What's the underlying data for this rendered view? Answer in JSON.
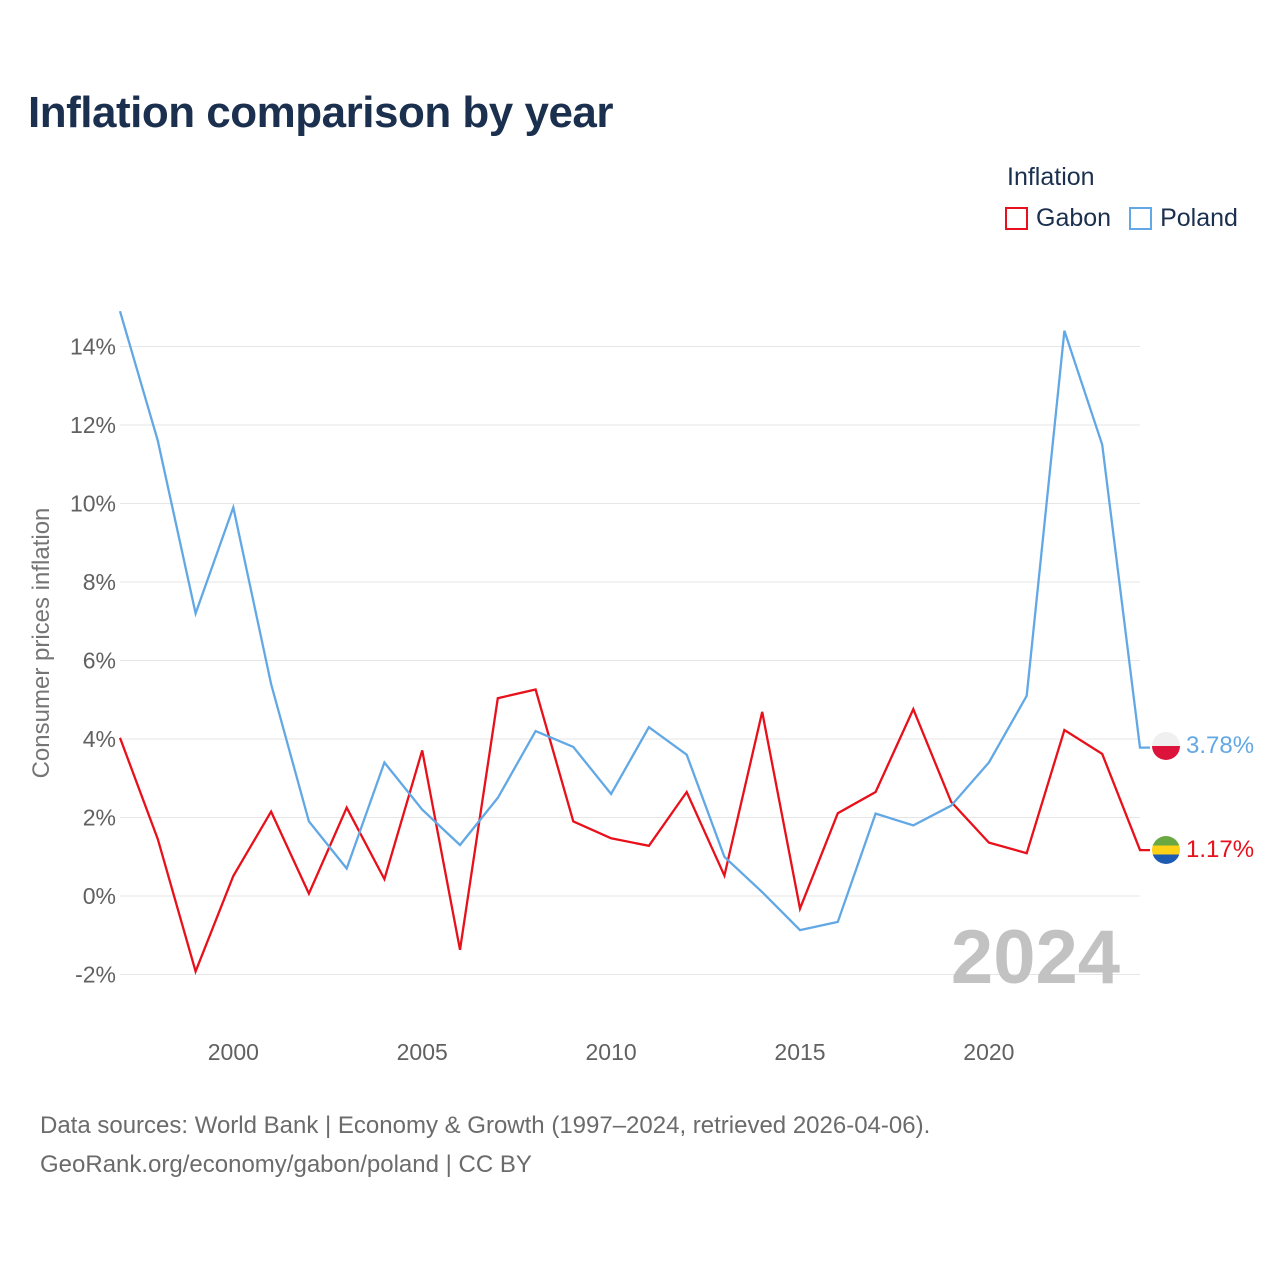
{
  "title": "Inflation comparison by year",
  "legend": {
    "title": "Inflation",
    "items": [
      {
        "label": "Gabon",
        "color": "#e8101a"
      },
      {
        "label": "Poland",
        "color": "#62a8e5"
      }
    ]
  },
  "chart_data": {
    "type": "line",
    "title": "Inflation comparison by year",
    "xlabel": "",
    "ylabel": "Consumer prices inflation",
    "xlim": [
      1997,
      2024
    ],
    "ylim": [
      -2.5,
      15
    ],
    "x": [
      1997,
      1998,
      1999,
      2000,
      2001,
      2002,
      2003,
      2004,
      2005,
      2006,
      2007,
      2008,
      2009,
      2010,
      2011,
      2012,
      2013,
      2014,
      2015,
      2016,
      2017,
      2018,
      2019,
      2020,
      2021,
      2022,
      2023,
      2024
    ],
    "x_ticks": [
      2000,
      2005,
      2010,
      2015,
      2020
    ],
    "y_ticks": [
      -2,
      0,
      2,
      4,
      6,
      8,
      10,
      12,
      14
    ],
    "y_tick_labels": [
      "-2%",
      "0%",
      "2%",
      "4%",
      "6%",
      "8%",
      "10%",
      "12%",
      "14%"
    ],
    "grid": true,
    "legend_position": "top-right",
    "series": [
      {
        "name": "Gabon",
        "color": "#e8101a",
        "values": [
          4.03,
          1.45,
          -1.92,
          0.51,
          2.15,
          0.06,
          2.25,
          0.43,
          3.71,
          -1.37,
          5.04,
          5.26,
          1.9,
          1.47,
          1.28,
          2.65,
          0.52,
          4.69,
          -0.32,
          2.11,
          2.65,
          4.76,
          2.4,
          1.36,
          1.09,
          4.23,
          3.62,
          1.17
        ],
        "end_label": "1.17%"
      },
      {
        "name": "Poland",
        "color": "#62a8e5",
        "values": [
          14.9,
          11.6,
          7.2,
          9.9,
          5.4,
          1.9,
          0.7,
          3.4,
          2.2,
          1.3,
          2.5,
          4.2,
          3.8,
          2.6,
          4.3,
          3.6,
          1.0,
          0.1,
          -0.87,
          -0.66,
          2.1,
          1.8,
          2.3,
          3.4,
          5.1,
          14.4,
          11.5,
          3.78
        ],
        "end_label": "3.78%"
      }
    ],
    "watermark_year": "2024"
  },
  "footer": {
    "line1": "Data sources: World Bank | Economy & Growth (1997–2024, retrieved 2026-04-06).",
    "line2": "GeoRank.org/economy/gabon/poland | CC BY"
  }
}
